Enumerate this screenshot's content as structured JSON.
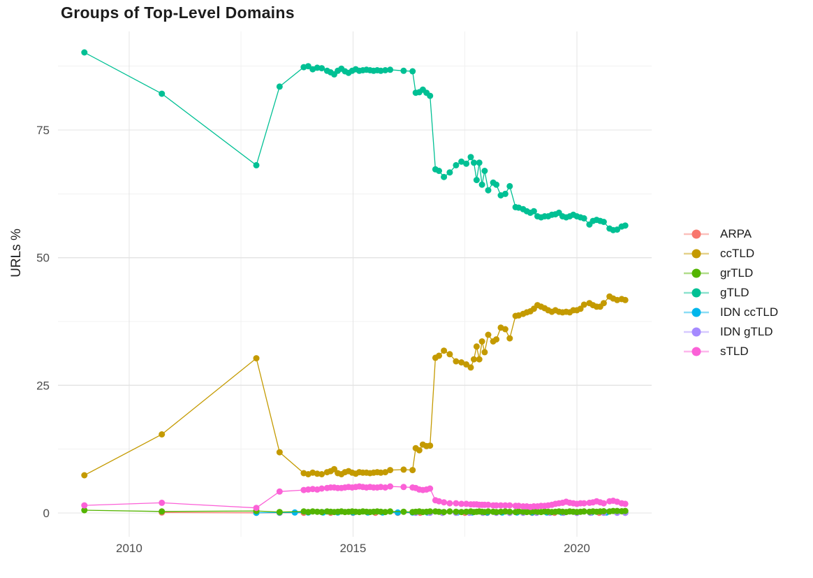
{
  "chart_data": {
    "type": "line",
    "title": "Groups of Top-Level Domains",
    "xlabel": "",
    "ylabel": "URLs %",
    "grid": true,
    "legend_position": "right",
    "background": "#ffffff",
    "grid_major_color": "#e4e4e4",
    "grid_minor_color": "#f1f1f1",
    "axis_text_color": "#4d4d4d",
    "xlim": [
      2008.41,
      2021.67
    ],
    "ylim": [
      -4.65,
      94.3
    ],
    "x_ticks": {
      "major": [
        2010,
        2015,
        2020
      ],
      "minor": [
        2012.5,
        2017.5
      ],
      "labels": [
        "2010",
        "2015",
        "2020"
      ]
    },
    "y_ticks": {
      "major": [
        0,
        25,
        50,
        75
      ],
      "minor": [
        12.5,
        37.5,
        62.5,
        87.5
      ],
      "labels": [
        "0",
        "25",
        "50",
        "75"
      ]
    },
    "draw_order": [
      "ARPA",
      "IDN ccTLD",
      "IDN gTLD",
      "grTLD",
      "sTLD",
      "ccTLD",
      "gTLD"
    ],
    "x": [
      2009.0,
      2010.73,
      2012.84,
      2013.36,
      2013.9,
      2014.0,
      2014.1,
      2014.2,
      2014.3,
      2014.42,
      2014.5,
      2014.58,
      2014.66,
      2014.74,
      2014.82,
      2014.9,
      2014.98,
      2015.06,
      2015.14,
      2015.22,
      2015.3,
      2015.38,
      2015.46,
      2015.54,
      2015.62,
      2015.72,
      2015.83,
      2016.13,
      2016.33,
      2016.4,
      2016.48,
      2016.56,
      2016.64,
      2016.72,
      2016.84,
      2016.92,
      2017.03,
      2017.16,
      2017.3,
      2017.42,
      2017.53,
      2017.63,
      2017.7,
      2017.76,
      2017.82,
      2017.88,
      2017.94,
      2018.02,
      2018.13,
      2018.2,
      2018.3,
      2018.4,
      2018.5,
      2018.63,
      2018.7,
      2018.8,
      2018.88,
      2018.96,
      2019.04,
      2019.12,
      2019.2,
      2019.28,
      2019.36,
      2019.44,
      2019.52,
      2019.6,
      2019.68,
      2019.76,
      2019.84,
      2019.92,
      2020.0,
      2020.08,
      2020.16,
      2020.28,
      2020.36,
      2020.44,
      2020.52,
      2020.6,
      2020.73,
      2020.81,
      2020.9,
      2021.0,
      2021.08
    ],
    "series": [
      {
        "name": "ARPA",
        "color": "#F8766D",
        "points": [
          [
            2010.73,
            0.1
          ],
          [
            2012.84,
            0.05
          ],
          [
            2013.36,
            0.05
          ],
          [
            2013.9,
            0.05
          ],
          [
            2014.5,
            0.05
          ],
          [
            2015.0,
            0.05
          ],
          [
            2015.5,
            0.05
          ],
          [
            2016.0,
            0.05
          ],
          [
            2016.5,
            0.05
          ],
          [
            2017.0,
            0.05
          ],
          [
            2017.5,
            0.05
          ],
          [
            2018.0,
            0.05
          ],
          [
            2018.5,
            0.05
          ],
          [
            2019.0,
            0.05
          ],
          [
            2019.5,
            0.05
          ],
          [
            2020.0,
            0.05
          ],
          [
            2020.5,
            0.05
          ],
          [
            2021.08,
            0.05
          ]
        ]
      },
      {
        "name": "ccTLD",
        "color": "#C49A00",
        "values": [
          7.4,
          15.4,
          30.3,
          11.9,
          7.8,
          7.6,
          7.9,
          7.7,
          7.6,
          8.0,
          8.2,
          8.6,
          7.8,
          7.6,
          8.0,
          8.2,
          7.9,
          7.7,
          8.0,
          7.9,
          7.9,
          7.8,
          7.9,
          8.0,
          7.9,
          8.0,
          8.4,
          8.5,
          8.4,
          12.7,
          12.3,
          13.4,
          13.1,
          13.2,
          30.4,
          30.8,
          31.8,
          31.1,
          29.7,
          29.5,
          29.1,
          28.5,
          30.1,
          32.6,
          30.1,
          33.6,
          31.5,
          34.9,
          33.6,
          34.0,
          36.3,
          36.0,
          34.2,
          38.6,
          38.7,
          39.0,
          39.3,
          39.5,
          40.0,
          40.7,
          40.4,
          40.1,
          39.7,
          39.4,
          39.7,
          39.4,
          39.3,
          39.4,
          39.3,
          39.7,
          39.7,
          40.0,
          40.8,
          41.1,
          40.7,
          40.4,
          40.4,
          41.1,
          42.4,
          42.0,
          41.7,
          41.9,
          41.7
        ]
      },
      {
        "name": "grTLD",
        "color": "#53B400",
        "values": [
          0.55,
          0.3,
          0.4,
          0.2,
          0.3,
          0.2,
          0.3,
          0.25,
          0.2,
          0.3,
          0.25,
          0.2,
          0.25,
          0.3,
          0.2,
          0.25,
          0.3,
          0.25,
          0.2,
          0.3,
          0.25,
          0.2,
          0.25,
          0.3,
          0.25,
          0.2,
          0.3,
          0.25,
          0.2,
          0.25,
          0.3,
          0.2,
          0.25,
          0.3,
          0.3,
          0.25,
          0.2,
          0.3,
          0.25,
          0.2,
          0.25,
          0.3,
          0.2,
          0.25,
          0.3,
          0.25,
          0.2,
          0.3,
          0.25,
          0.2,
          0.25,
          0.3,
          0.25,
          0.2,
          0.3,
          0.25,
          0.2,
          0.25,
          0.3,
          0.25,
          0.2,
          0.3,
          0.25,
          0.2,
          0.25,
          0.3,
          0.25,
          0.2,
          0.3,
          0.25,
          0.2,
          0.25,
          0.3,
          0.25,
          0.3,
          0.25,
          0.3,
          0.35,
          0.3,
          0.4,
          0.4,
          0.35,
          0.4
        ]
      },
      {
        "name": "gTLD",
        "color": "#00C094",
        "values": [
          90.2,
          82.1,
          68.1,
          83.5,
          87.3,
          87.5,
          86.9,
          87.2,
          87.1,
          86.6,
          86.3,
          85.9,
          86.6,
          87.0,
          86.5,
          86.2,
          86.6,
          86.9,
          86.6,
          86.7,
          86.8,
          86.7,
          86.6,
          86.7,
          86.6,
          86.7,
          86.8,
          86.6,
          86.5,
          82.3,
          82.4,
          82.9,
          82.3,
          81.7,
          67.3,
          67.0,
          65.8,
          66.7,
          68.1,
          68.8,
          68.4,
          69.7,
          68.6,
          65.2,
          68.6,
          64.3,
          67.0,
          63.2,
          64.7,
          64.3,
          62.2,
          62.5,
          64.0,
          59.9,
          59.8,
          59.5,
          59.1,
          58.8,
          59.1,
          58.1,
          57.9,
          58.1,
          58.1,
          58.4,
          58.5,
          58.8,
          58.1,
          57.9,
          58.1,
          58.4,
          58.1,
          57.9,
          57.7,
          56.5,
          57.2,
          57.4,
          57.2,
          57.0,
          55.7,
          55.4,
          55.5,
          56.1,
          56.3
        ]
      },
      {
        "name": "IDN ccTLD",
        "color": "#00B6EB",
        "points": [
          [
            2012.84,
            0.05
          ],
          [
            2013.36,
            0.1
          ],
          [
            2013.7,
            0.1
          ],
          [
            2014.0,
            0.1
          ],
          [
            2014.33,
            0.1
          ],
          [
            2014.66,
            0.1
          ],
          [
            2015.0,
            0.1
          ],
          [
            2015.33,
            0.1
          ],
          [
            2015.66,
            0.1
          ],
          [
            2016.0,
            0.1
          ],
          [
            2016.33,
            0.1
          ],
          [
            2016.66,
            0.1
          ],
          [
            2017.0,
            0.1
          ],
          [
            2017.33,
            0.1
          ],
          [
            2017.66,
            0.1
          ],
          [
            2018.0,
            0.1
          ],
          [
            2018.33,
            0.1
          ],
          [
            2018.66,
            0.1
          ],
          [
            2019.0,
            0.1
          ],
          [
            2019.33,
            0.1
          ],
          [
            2019.66,
            0.1
          ],
          [
            2020.0,
            0.1
          ],
          [
            2020.33,
            0.1
          ],
          [
            2020.66,
            0.1
          ],
          [
            2021.08,
            0.1
          ]
        ]
      },
      {
        "name": "IDN gTLD",
        "color": "#A58AFF",
        "points": [
          [
            2016.4,
            0.05
          ],
          [
            2016.72,
            0.05
          ],
          [
            2017.0,
            0.05
          ],
          [
            2017.3,
            0.05
          ],
          [
            2017.6,
            0.05
          ],
          [
            2017.9,
            0.05
          ],
          [
            2018.2,
            0.05
          ],
          [
            2018.5,
            0.05
          ],
          [
            2018.8,
            0.05
          ],
          [
            2019.1,
            0.05
          ],
          [
            2019.4,
            0.05
          ],
          [
            2019.7,
            0.05
          ],
          [
            2020.0,
            0.05
          ],
          [
            2020.3,
            0.05
          ],
          [
            2020.6,
            0.05
          ],
          [
            2020.9,
            0.05
          ],
          [
            2021.08,
            0.05
          ]
        ]
      },
      {
        "name": "sTLD",
        "color": "#FB61D7",
        "values": [
          1.5,
          2.0,
          1.0,
          4.2,
          4.5,
          4.6,
          4.7,
          4.6,
          4.8,
          4.9,
          5.0,
          5.0,
          4.9,
          4.9,
          5.0,
          5.1,
          5.0,
          5.1,
          5.2,
          5.1,
          5.0,
          5.1,
          5.0,
          5.0,
          5.1,
          5.0,
          5.2,
          5.1,
          5.0,
          4.9,
          4.6,
          4.5,
          4.6,
          4.8,
          2.5,
          2.3,
          2.1,
          1.9,
          1.9,
          1.8,
          1.8,
          1.7,
          1.7,
          1.7,
          1.6,
          1.6,
          1.6,
          1.6,
          1.5,
          1.5,
          1.5,
          1.5,
          1.5,
          1.4,
          1.4,
          1.3,
          1.3,
          1.2,
          1.3,
          1.3,
          1.4,
          1.4,
          1.5,
          1.6,
          1.8,
          1.9,
          2.0,
          2.2,
          2.0,
          1.9,
          1.8,
          1.9,
          1.9,
          2.0,
          2.1,
          2.3,
          2.1,
          1.9,
          2.3,
          2.4,
          2.2,
          1.9,
          1.8
        ]
      }
    ]
  }
}
